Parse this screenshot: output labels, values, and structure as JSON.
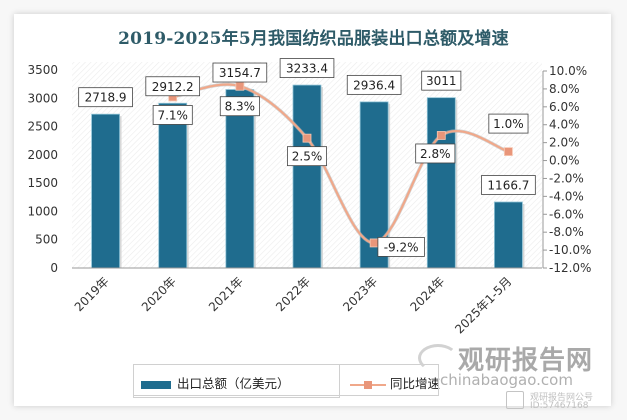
{
  "chart_data": {
    "type": "bar+line",
    "title": "2019-2025年5月我国纺织品服装出口总额及增速",
    "categories": [
      "2019年",
      "2020年",
      "2021年",
      "2022年",
      "2023年",
      "2024年",
      "2025年1-5月"
    ],
    "series": [
      {
        "name": "出口总额（亿美元）",
        "type": "bar",
        "axis": "left",
        "color": "#1f6c8e",
        "values": [
          2718.9,
          2912.2,
          3154.7,
          3233.4,
          2936.4,
          3011,
          1166.7
        ],
        "labels": [
          "2718.9",
          "2912.2",
          "3154.7",
          "3233.4",
          "2936.4",
          "3011",
          "1166.7"
        ]
      },
      {
        "name": "同比增速",
        "type": "line",
        "axis": "right",
        "color": "#f0a88a",
        "values": [
          null,
          7.1,
          8.3,
          2.5,
          -9.2,
          2.8,
          1.0
        ],
        "labels": [
          null,
          "7.1%",
          "8.3%",
          "2.5%",
          "-9.2%",
          "2.8%",
          "1.0%"
        ]
      }
    ],
    "y_left": {
      "range": [
        0,
        3500
      ],
      "ticks": [
        "3500",
        "3000",
        "2500",
        "2000",
        "1500",
        "1000",
        "500",
        "0"
      ],
      "tick_values": [
        3500,
        3000,
        2500,
        2000,
        1500,
        1000,
        500,
        0
      ]
    },
    "y_right": {
      "range": [
        -12,
        10
      ],
      "ticks": [
        "10.0%",
        "8.0%",
        "6.0%",
        "4.0%",
        "2.0%",
        "0.0%",
        "-2.0%",
        "-4.0%",
        "-6.0%",
        "-8.0%",
        "-10.0%",
        "-12.0%"
      ],
      "tick_values": [
        10,
        8,
        6,
        4,
        2,
        0,
        -2,
        -4,
        -6,
        -8,
        -10,
        -12
      ]
    },
    "legend": {
      "position": "bottom",
      "items": [
        "出口总额（亿美元）",
        "同比增速"
      ]
    }
  },
  "watermark": {
    "brand": "观研报告网",
    "domain": "chinabaogao.com",
    "sub": "观研报告网公号",
    "id": "ID:57467168"
  }
}
